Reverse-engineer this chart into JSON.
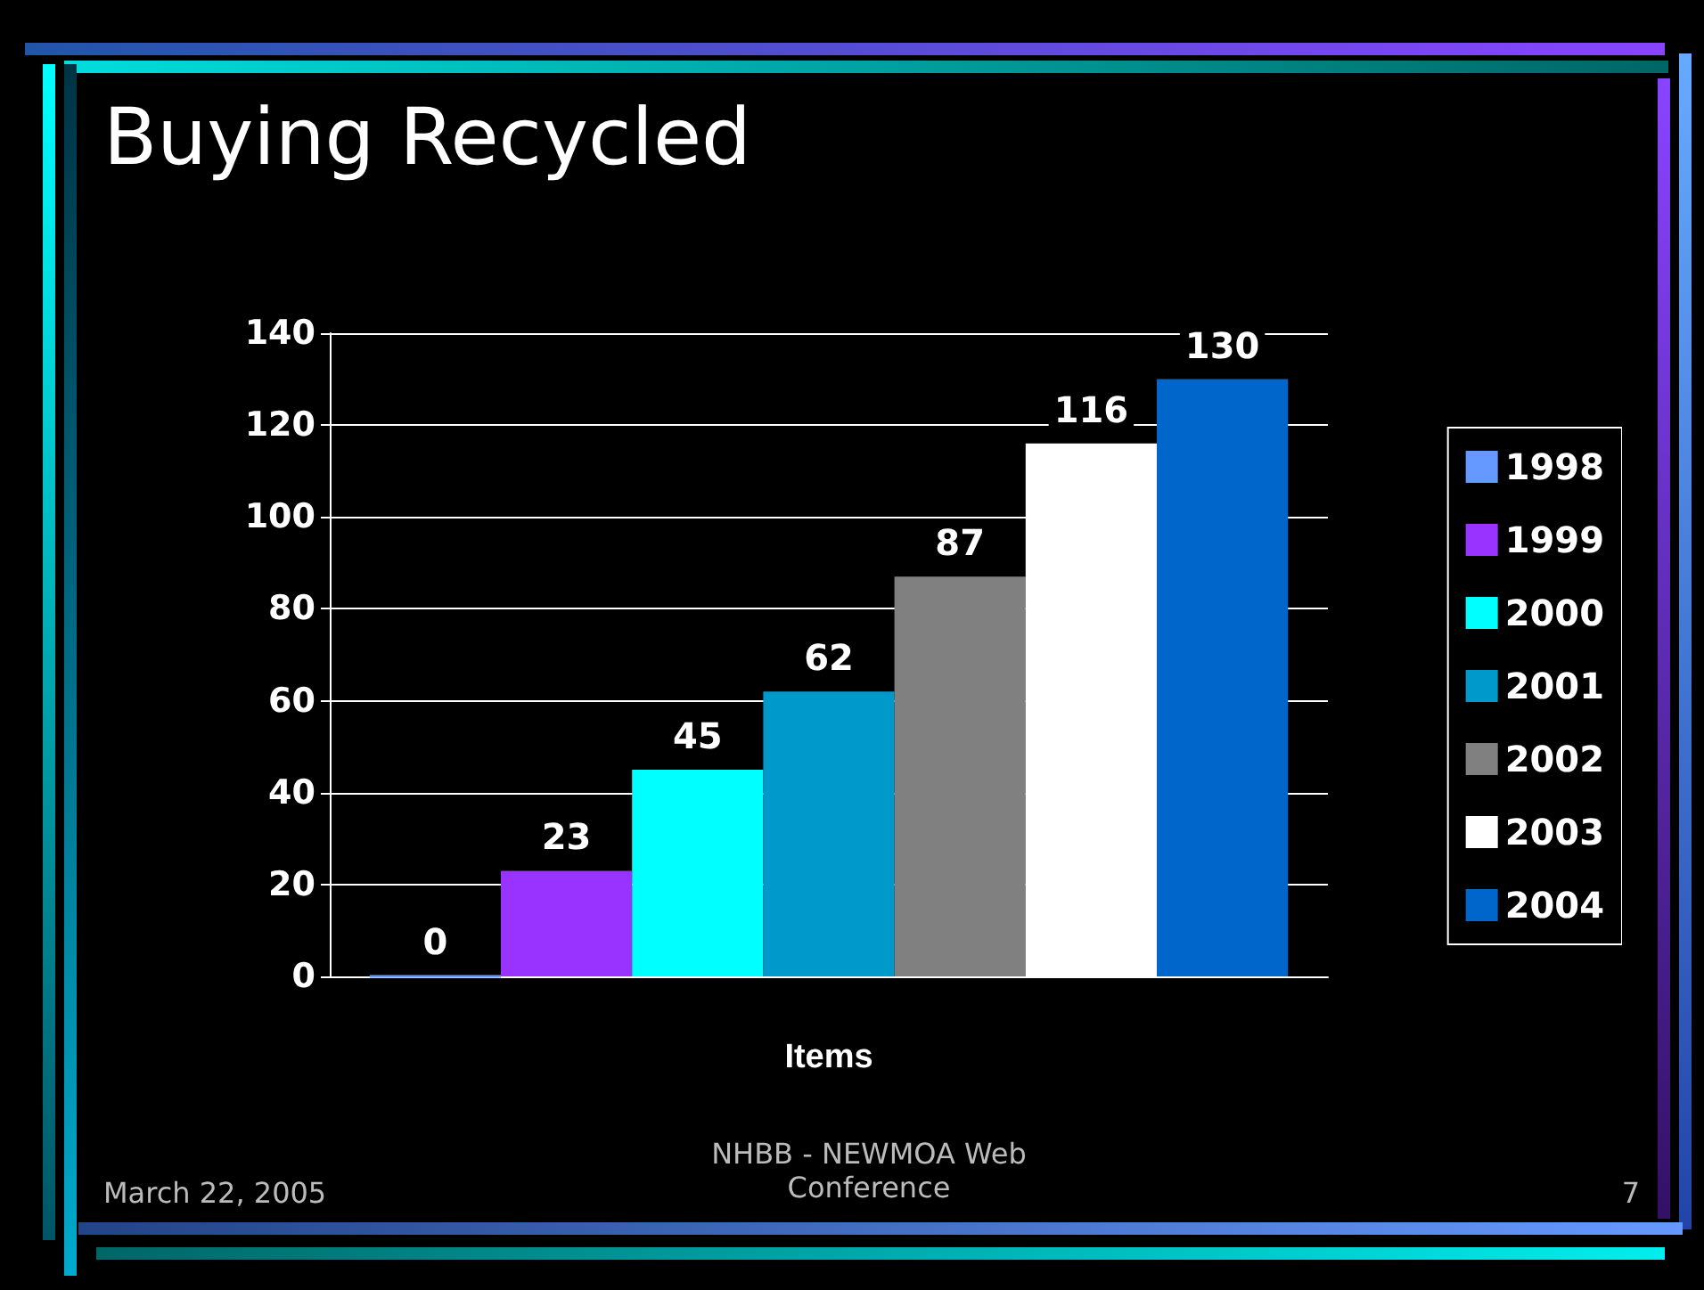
{
  "chart_data": {
    "type": "bar",
    "title": "Buying Recycled",
    "xlabel": "Items",
    "categories": [
      null
    ],
    "series": [
      {
        "name": "1998",
        "color": "#6699ff",
        "values": [
          0
        ]
      },
      {
        "name": "1999",
        "color": "#9933ff",
        "values": [
          23
        ]
      },
      {
        "name": "2000",
        "color": "#00ffff",
        "values": [
          45
        ]
      },
      {
        "name": "2001",
        "color": "#0099cc",
        "values": [
          62
        ]
      },
      {
        "name": "2002",
        "color": "#808080",
        "values": [
          87
        ]
      },
      {
        "name": "2003",
        "color": "#ffffff",
        "values": [
          116
        ]
      },
      {
        "name": "2004",
        "color": "#0066cc",
        "values": [
          130
        ]
      }
    ],
    "ylim": [
      0,
      140
    ],
    "yticks": [
      0,
      20,
      40,
      60,
      80,
      100,
      120,
      140
    ],
    "grid": "y",
    "legend": "right",
    "data_labels": true,
    "annotations": [
      "March 22, 2005",
      "NHBB - NEWMOA Web Conference",
      "7"
    ]
  }
}
